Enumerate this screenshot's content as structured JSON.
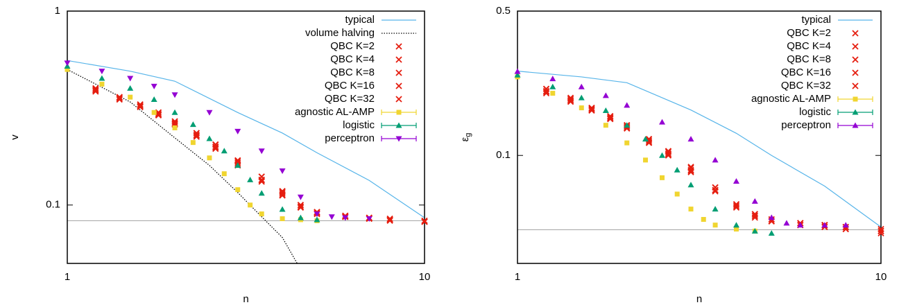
{
  "chart_data": [
    {
      "type": "line",
      "xlabel": "n",
      "ylabel": "v",
      "log_x": true,
      "log_y": true,
      "xlim": [
        1,
        10
      ],
      "ylim": [
        0.05,
        1
      ],
      "xticks": [
        1,
        10
      ],
      "yticks": [
        1,
        0.1
      ],
      "reference_line": 0.083,
      "legend": "upper right",
      "series": [
        {
          "name": "typical",
          "color": "#56b4e9",
          "style": "line",
          "x": [
            1,
            1.5,
            2,
            3,
            4,
            5,
            7,
            10
          ],
          "values": [
            0.556,
            0.49,
            0.435,
            0.3,
            0.235,
            0.186,
            0.134,
            0.086
          ]
        },
        {
          "name": "volume halving",
          "color": "#000000",
          "style": "dotted",
          "x": [
            1,
            1.5,
            2,
            2.5,
            3,
            3.5,
            4,
            4.4
          ],
          "values": [
            0.5,
            0.34,
            0.222,
            0.16,
            0.116,
            0.087,
            0.068,
            0.05
          ]
        },
        {
          "name": "QBC K=2",
          "color": "#e51e10",
          "style": "x",
          "x": [
            1.2,
            1.4,
            1.6,
            1.8,
            2,
            2.3,
            2.6,
            3,
            3.5,
            4,
            4.5,
            5,
            6,
            7,
            8,
            10
          ],
          "values": [
            0.4,
            0.36,
            0.33,
            0.3,
            0.27,
            0.235,
            0.205,
            0.17,
            0.14,
            0.118,
            0.1,
            0.092,
            0.088,
            0.086,
            0.085,
            0.083
          ]
        },
        {
          "name": "QBC K=4",
          "color": "#e51e10",
          "style": "x",
          "x": [
            1.2,
            1.4,
            1.6,
            1.8,
            2,
            2.3,
            2.6,
            3,
            3.5,
            4,
            4.5,
            5,
            6,
            7,
            8,
            10
          ],
          "values": [
            0.39,
            0.355,
            0.325,
            0.295,
            0.265,
            0.23,
            0.2,
            0.165,
            0.135,
            0.115,
            0.098,
            0.091,
            0.088,
            0.086,
            0.084,
            0.082
          ]
        },
        {
          "name": "QBC K=8",
          "color": "#e51e10",
          "style": "x",
          "x": [
            1.2,
            1.4,
            1.6,
            1.8,
            2,
            2.3,
            2.6,
            3,
            3.5,
            4,
            4.5,
            5,
            6,
            7,
            8,
            10
          ],
          "values": [
            0.395,
            0.36,
            0.33,
            0.3,
            0.27,
            0.235,
            0.205,
            0.168,
            0.14,
            0.117,
            0.1,
            0.092,
            0.087,
            0.085,
            0.084,
            0.082
          ]
        },
        {
          "name": "QBC K=16",
          "color": "#e51e10",
          "style": "x",
          "x": [
            1.2,
            1.4,
            1.6,
            1.8,
            2,
            2.3,
            2.6,
            3,
            3.5,
            4,
            4.5,
            5,
            6,
            7,
            8,
            10
          ],
          "values": [
            0.385,
            0.35,
            0.32,
            0.29,
            0.26,
            0.225,
            0.195,
            0.16,
            0.132,
            0.112,
            0.097,
            0.09,
            0.087,
            0.085,
            0.084,
            0.082
          ]
        },
        {
          "name": "QBC K=32",
          "color": "#e51e10",
          "style": "x",
          "x": [
            1.2,
            1.4,
            1.6,
            1.8,
            2,
            2.3,
            2.6,
            3,
            3.5,
            4,
            4.5,
            5,
            6,
            7,
            8,
            10
          ],
          "values": [
            0.39,
            0.355,
            0.322,
            0.292,
            0.262,
            0.228,
            0.198,
            0.162,
            0.134,
            0.113,
            0.098,
            0.09,
            0.087,
            0.085,
            0.083,
            0.082
          ]
        },
        {
          "name": "agnostic AL-AMP",
          "color": "#f0d530",
          "style": "square",
          "x": [
            1,
            1.25,
            1.5,
            1.75,
            2,
            2.25,
            2.5,
            2.75,
            3,
            3.25,
            3.5,
            4,
            4.5,
            5
          ],
          "values": [
            0.5,
            0.42,
            0.36,
            0.3,
            0.25,
            0.21,
            0.175,
            0.145,
            0.12,
            0.1,
            0.09,
            0.085,
            0.084,
            0.083
          ]
        },
        {
          "name": "logistic",
          "color": "#009e73",
          "style": "triangle",
          "x": [
            1,
            1.25,
            1.5,
            1.75,
            2,
            2.25,
            2.5,
            2.75,
            3,
            3.25,
            3.5,
            4,
            4.5,
            5
          ],
          "values": [
            0.52,
            0.45,
            0.4,
            0.35,
            0.3,
            0.26,
            0.22,
            0.19,
            0.16,
            0.135,
            0.115,
            0.095,
            0.086,
            0.084
          ]
        },
        {
          "name": "perceptron",
          "color": "#9400d3",
          "style": "inverted-triangle",
          "x": [
            1,
            1.25,
            1.5,
            1.75,
            2,
            2.5,
            3,
            3.5,
            4,
            4.5,
            5,
            5.5,
            6,
            7
          ],
          "values": [
            0.54,
            0.49,
            0.45,
            0.41,
            0.37,
            0.3,
            0.24,
            0.19,
            0.15,
            0.11,
            0.09,
            0.087,
            0.086,
            0.085
          ]
        }
      ]
    },
    {
      "type": "line",
      "xlabel": "n",
      "ylabel": "ε",
      "ylabel_subscript": "g",
      "log_x": true,
      "log_y": true,
      "xlim": [
        1,
        10
      ],
      "ylim": [
        0.03,
        0.5
      ],
      "xticks": [
        1,
        10
      ],
      "yticks": [
        0.5,
        0.1
      ],
      "reference_line": 0.0437,
      "legend": "upper right",
      "series": [
        {
          "name": "typical",
          "color": "#56b4e9",
          "style": "line",
          "x": [
            1,
            1.5,
            2,
            3,
            4,
            5,
            7,
            10
          ],
          "values": [
            0.256,
            0.24,
            0.225,
            0.166,
            0.128,
            0.1,
            0.071,
            0.045
          ]
        },
        {
          "name": "QBC K=2",
          "color": "#e51e10",
          "style": "x",
          "x": [
            1.2,
            1.4,
            1.6,
            1.8,
            2,
            2.3,
            2.6,
            3,
            3.5,
            4,
            4.5,
            5,
            6,
            7,
            8,
            10
          ],
          "values": [
            0.21,
            0.19,
            0.17,
            0.155,
            0.14,
            0.12,
            0.105,
            0.088,
            0.07,
            0.058,
            0.052,
            0.049,
            0.047,
            0.046,
            0.045,
            0.044
          ]
        },
        {
          "name": "QBC K=4",
          "color": "#e51e10",
          "style": "x",
          "x": [
            1.2,
            1.4,
            1.6,
            1.8,
            2,
            2.3,
            2.6,
            3,
            3.5,
            4,
            4.5,
            5,
            6,
            7,
            8,
            10
          ],
          "values": [
            0.205,
            0.185,
            0.168,
            0.152,
            0.138,
            0.118,
            0.102,
            0.085,
            0.068,
            0.057,
            0.051,
            0.048,
            0.047,
            0.046,
            0.045,
            0.043
          ]
        },
        {
          "name": "QBC K=8",
          "color": "#e51e10",
          "style": "x",
          "x": [
            1.2,
            1.4,
            1.6,
            1.8,
            2,
            2.3,
            2.6,
            3,
            3.5,
            4,
            4.5,
            5,
            6,
            7,
            8,
            10
          ],
          "values": [
            0.21,
            0.188,
            0.17,
            0.154,
            0.14,
            0.12,
            0.104,
            0.087,
            0.07,
            0.058,
            0.052,
            0.049,
            0.047,
            0.046,
            0.045,
            0.043
          ]
        },
        {
          "name": "QBC K=16",
          "color": "#e51e10",
          "style": "x",
          "x": [
            1.2,
            1.4,
            1.6,
            1.8,
            2,
            2.3,
            2.6,
            3,
            3.5,
            4,
            4.5,
            5,
            6,
            7,
            8,
            10
          ],
          "values": [
            0.2,
            0.182,
            0.165,
            0.15,
            0.135,
            0.115,
            0.1,
            0.083,
            0.067,
            0.056,
            0.05,
            0.048,
            0.046,
            0.045,
            0.044,
            0.043
          ]
        },
        {
          "name": "QBC K=32",
          "color": "#e51e10",
          "style": "x",
          "x": [
            1.2,
            1.4,
            1.6,
            1.8,
            2,
            2.3,
            2.6,
            3,
            3.5,
            4,
            4.5,
            5,
            6,
            7,
            8,
            10
          ],
          "values": [
            0.203,
            0.184,
            0.166,
            0.151,
            0.136,
            0.116,
            0.101,
            0.084,
            0.068,
            0.056,
            0.051,
            0.048,
            0.046,
            0.045,
            0.044,
            0.042
          ]
        },
        {
          "name": "agnostic AL-AMP",
          "color": "#f0d530",
          "style": "square",
          "x": [
            1,
            1.25,
            1.5,
            1.75,
            2,
            2.25,
            2.5,
            2.75,
            3,
            3.25,
            3.5,
            4,
            4.5
          ],
          "values": [
            0.24,
            0.2,
            0.17,
            0.14,
            0.115,
            0.095,
            0.078,
            0.065,
            0.055,
            0.049,
            0.046,
            0.044,
            0.043
          ]
        },
        {
          "name": "logistic",
          "color": "#009e73",
          "style": "triangle",
          "x": [
            1,
            1.25,
            1.5,
            1.75,
            2,
            2.25,
            2.5,
            2.75,
            3,
            3.5,
            4,
            4.5,
            5
          ],
          "values": [
            0.245,
            0.215,
            0.19,
            0.165,
            0.14,
            0.12,
            0.1,
            0.085,
            0.072,
            0.055,
            0.046,
            0.043,
            0.042
          ]
        },
        {
          "name": "perceptron",
          "color": "#9400d3",
          "style": "triangle",
          "x": [
            1,
            1.25,
            1.5,
            1.75,
            2,
            2.5,
            3,
            3.5,
            4,
            4.5,
            5,
            5.5,
            6,
            7,
            8
          ],
          "values": [
            0.255,
            0.235,
            0.215,
            0.195,
            0.175,
            0.145,
            0.12,
            0.095,
            0.075,
            0.06,
            0.05,
            0.047,
            0.046,
            0.046,
            0.046
          ]
        }
      ]
    }
  ]
}
